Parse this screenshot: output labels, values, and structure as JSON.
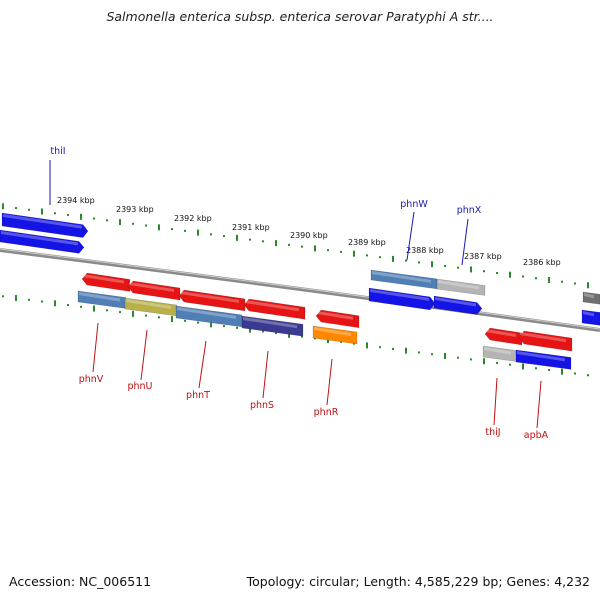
{
  "title": "Salmonella enterica subsp. enterica serovar Paratyphi A str....",
  "footer": {
    "accession": "Accession: NC_006511",
    "summary": "Topology: circular; Length: 4,585,229 bp; Genes: 4,232"
  },
  "colors": {
    "forward_gene": "#1414e6",
    "reverse_gene": "#e61414",
    "ruler_dots": "#2a8a2a",
    "backbone": "#8a8a8a",
    "forward_label": "#1a1ab0",
    "reverse_label": "#c01010",
    "cog_steel": "#4f7fb5",
    "cog_olive": "#b8b04a",
    "cog_slate": "#3a3a90",
    "cog_orange": "#ff8800",
    "cog_grey": "#b4b4b4"
  },
  "ruler": [
    {
      "label": "2394 kbp"
    },
    {
      "label": "2393 kbp"
    },
    {
      "label": "2392 kbp"
    },
    {
      "label": "2391 kbp"
    },
    {
      "label": "2390 kbp"
    },
    {
      "label": "2389 kbp"
    },
    {
      "label": "2388 kbp"
    },
    {
      "label": "2387 kbp"
    },
    {
      "label": "2386 kbp"
    }
  ],
  "gene_labels": [
    {
      "name": "thiI",
      "strand": "forward"
    },
    {
      "name": "phnW",
      "strand": "forward"
    },
    {
      "name": "phnX",
      "strand": "forward"
    },
    {
      "name": "phnV",
      "strand": "reverse"
    },
    {
      "name": "phnU",
      "strand": "reverse"
    },
    {
      "name": "phnT",
      "strand": "reverse"
    },
    {
      "name": "phnS",
      "strand": "reverse"
    },
    {
      "name": "phnR",
      "strand": "reverse"
    },
    {
      "name": "thiJ",
      "strand": "reverse"
    },
    {
      "name": "apbA",
      "strand": "reverse"
    }
  ]
}
